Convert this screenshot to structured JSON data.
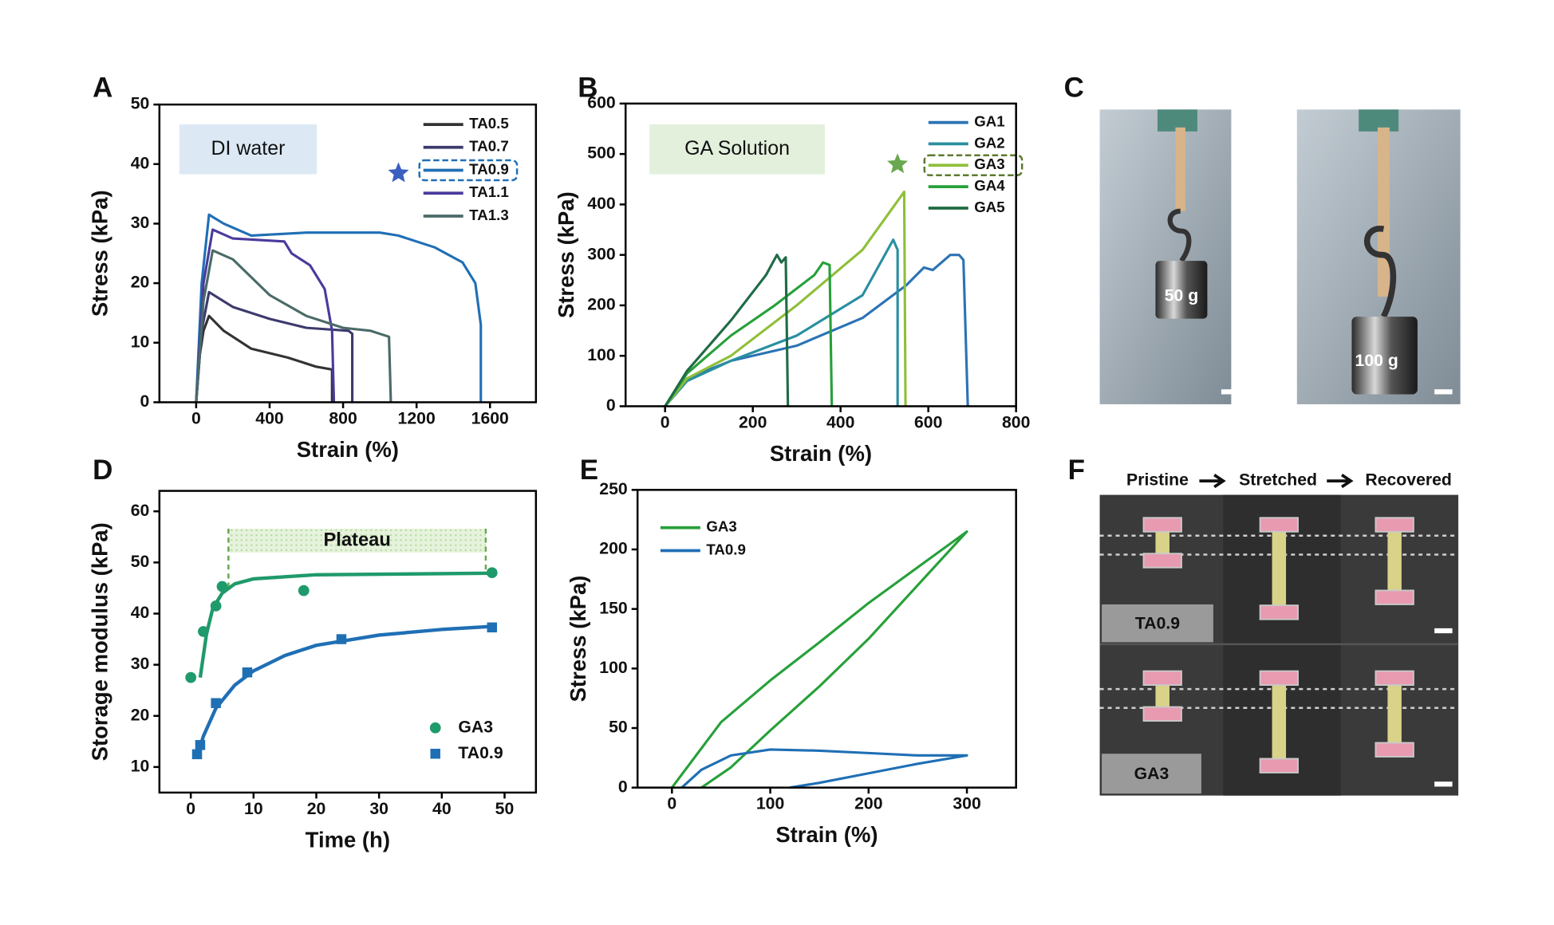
{
  "chart_data": [
    {
      "panel": "A",
      "type": "line",
      "xlabel": "Strain (%)",
      "ylabel": "Stress (kPa)",
      "xlim": [
        -200,
        1850
      ],
      "xticks": [
        0,
        400,
        800,
        1200,
        1600
      ],
      "ylim": [
        0,
        50
      ],
      "yticks": [
        0,
        10,
        20,
        30,
        40,
        50
      ],
      "annotation": "DI water",
      "highlight_series": 2,
      "series": [
        {
          "name": "TA0.5",
          "color": "#333333",
          "x": [
            0,
            20,
            40,
            70,
            150,
            300,
            500,
            650,
            740,
            740
          ],
          "values": [
            0,
            8,
            12,
            14.5,
            12,
            9,
            7.5,
            6,
            5.5,
            0
          ]
        },
        {
          "name": "TA0.7",
          "color": "#3d3a6e",
          "x": [
            0,
            30,
            70,
            200,
            400,
            600,
            830,
            850,
            850
          ],
          "values": [
            0,
            12,
            18.5,
            16,
            14,
            12.5,
            12,
            11.5,
            0
          ]
        },
        {
          "name": "TA0.9",
          "color": "#1f6fb5",
          "x": [
            0,
            30,
            70,
            150,
            300,
            600,
            1000,
            1100,
            1300,
            1450,
            1520,
            1550,
            1550
          ],
          "values": [
            0,
            20,
            31.5,
            30,
            28,
            28.5,
            28.5,
            28,
            26,
            23.5,
            20,
            13,
            0
          ]
        },
        {
          "name": "TA1.1",
          "color": "#4b3a9c",
          "x": [
            0,
            40,
            90,
            200,
            480,
            520,
            620,
            700,
            740,
            750
          ],
          "values": [
            0,
            20,
            29,
            27.5,
            27,
            25,
            23,
            19,
            12,
            0
          ]
        },
        {
          "name": "TA1.3",
          "color": "#4a6b68",
          "x": [
            0,
            40,
            90,
            200,
            400,
            600,
            800,
            950,
            1050,
            1060
          ],
          "values": [
            0,
            17,
            25.5,
            24,
            18,
            14.5,
            12.5,
            12,
            11,
            0
          ]
        }
      ]
    },
    {
      "panel": "B",
      "type": "line",
      "xlabel": "Strain (%)",
      "ylabel": "Stress (kPa)",
      "xlim": [
        -90,
        800
      ],
      "xticks": [
        0,
        200,
        400,
        600,
        800
      ],
      "ylim": [
        0,
        600
      ],
      "yticks": [
        0,
        100,
        200,
        300,
        400,
        500,
        600
      ],
      "annotation": "GA Solution",
      "highlight_series": 2,
      "series": [
        {
          "name": "GA1",
          "color": "#2b73b5",
          "x": [
            0,
            50,
            150,
            300,
            450,
            550,
            590,
            610,
            650,
            670,
            680,
            690
          ],
          "values": [
            0,
            55,
            90,
            120,
            175,
            240,
            275,
            270,
            300,
            300,
            290,
            0
          ]
        },
        {
          "name": "GA2",
          "color": "#2a8fa0",
          "x": [
            0,
            50,
            150,
            300,
            450,
            520,
            530,
            530
          ],
          "values": [
            0,
            50,
            90,
            140,
            220,
            330,
            310,
            0
          ]
        },
        {
          "name": "GA3",
          "color": "#8fbf3a",
          "x": [
            0,
            50,
            150,
            300,
            450,
            545,
            548
          ],
          "values": [
            0,
            55,
            100,
            200,
            310,
            425,
            0
          ]
        },
        {
          "name": "GA4",
          "color": "#27a03a",
          "x": [
            0,
            50,
            150,
            250,
            340,
            360,
            375,
            380
          ],
          "values": [
            0,
            65,
            140,
            200,
            260,
            285,
            280,
            0
          ]
        },
        {
          "name": "GA5",
          "color": "#1f6b45",
          "x": [
            0,
            50,
            150,
            230,
            255,
            265,
            275,
            280
          ],
          "values": [
            0,
            70,
            170,
            260,
            300,
            285,
            295,
            0
          ]
        }
      ]
    },
    {
      "panel": "D",
      "type": "scatter",
      "xlabel": "Time (h)",
      "ylabel": "Storage modulus (kPa)",
      "xlim": [
        -5,
        55
      ],
      "xticks": [
        0,
        10,
        20,
        30,
        40,
        50
      ],
      "ylim": [
        5,
        64
      ],
      "yticks": [
        10,
        20,
        30,
        40,
        50,
        60
      ],
      "annotation": "Plateau",
      "plateau_range": [
        6,
        47
      ],
      "series": [
        {
          "name": "GA3",
          "color": "#1f9a6b",
          "marker": "circle",
          "x": [
            0,
            2,
            4,
            5,
            18,
            48
          ],
          "values": [
            27.5,
            36.5,
            41.5,
            45.3,
            44.5,
            48
          ],
          "fit": {
            "x": [
              1.5,
              2.5,
              3.5,
              5,
              7,
              10,
              20,
              48
            ],
            "values": [
              27.5,
              36,
              41,
              44,
              45.8,
              46.8,
              47.6,
              47.9
            ]
          }
        },
        {
          "name": "TA0.9",
          "color": "#1f6fb5",
          "marker": "square",
          "x": [
            1,
            1.5,
            4,
            9,
            24,
            48
          ],
          "values": [
            12.5,
            14.3,
            22.5,
            28.5,
            35,
            37.3
          ],
          "fit": {
            "x": [
              1,
              2,
              4,
              7,
              10,
              15,
              20,
              30,
              40,
              48
            ],
            "values": [
              12,
              16,
              21.5,
              26,
              28.8,
              31.8,
              33.8,
              35.8,
              36.9,
              37.5
            ]
          }
        }
      ]
    },
    {
      "panel": "E",
      "type": "line",
      "xlabel": "Strain (%)",
      "ylabel": "Stress (kPa)",
      "xlim": [
        -35,
        350
      ],
      "xticks": [
        0,
        100,
        200,
        300
      ],
      "ylim": [
        0,
        250
      ],
      "yticks": [
        0,
        50,
        100,
        150,
        200,
        250
      ],
      "series": [
        {
          "name": "GA3",
          "color": "#27a03a",
          "x": [
            0,
            50,
            100,
            150,
            200,
            250,
            300,
            250,
            200,
            150,
            100,
            60,
            30
          ],
          "values": [
            0,
            55,
            90,
            122,
            155,
            185,
            215,
            170,
            125,
            85,
            48,
            17,
            0
          ]
        },
        {
          "name": "TA0.9",
          "color": "#1f6fb5",
          "x": [
            10,
            30,
            60,
            100,
            150,
            200,
            250,
            300,
            250,
            200,
            150,
            120
          ],
          "values": [
            0,
            15,
            27,
            32,
            31,
            29,
            27,
            27,
            20,
            12,
            4,
            0
          ]
        }
      ]
    }
  ],
  "photos": {
    "C": {
      "panel": "C",
      "weights": [
        "50 g",
        "100 g"
      ]
    },
    "F": {
      "panel": "F",
      "header": [
        "Pristine",
        "Stretched",
        "Recovered"
      ],
      "rows": [
        "TA0.9",
        "GA3"
      ]
    }
  }
}
